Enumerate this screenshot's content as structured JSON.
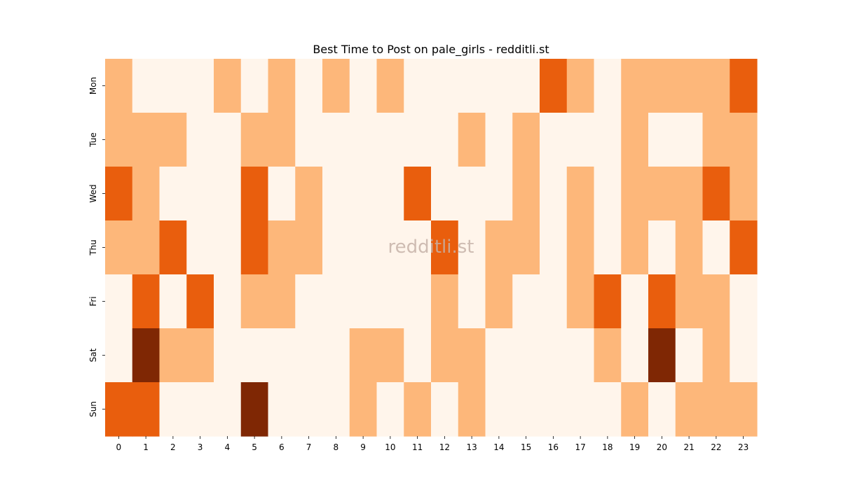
{
  "chart_data": {
    "type": "heatmap",
    "title": "Best Time to Post on pale_girls - redditli.st",
    "watermark": "redditli.st",
    "x_categories": [
      "0",
      "1",
      "2",
      "3",
      "4",
      "5",
      "6",
      "7",
      "8",
      "9",
      "10",
      "11",
      "12",
      "13",
      "14",
      "15",
      "16",
      "17",
      "18",
      "19",
      "20",
      "21",
      "22",
      "23"
    ],
    "y_categories": [
      "Mon",
      "Tue",
      "Wed",
      "Thu",
      "Fri",
      "Sat",
      "Sun"
    ],
    "xlabel": "",
    "ylabel": "",
    "colorbar": false,
    "colormap": "Oranges",
    "levels": 4,
    "level_colors": [
      "#fff5eb",
      "#fdb77a",
      "#e95e0d",
      "#7f2704"
    ],
    "values": [
      [
        1,
        0,
        0,
        0,
        1,
        0,
        1,
        0,
        1,
        0,
        1,
        0,
        0,
        0,
        0,
        0,
        2,
        1,
        0,
        1,
        1,
        1,
        1,
        2
      ],
      [
        1,
        1,
        1,
        0,
        0,
        1,
        1,
        0,
        0,
        0,
        0,
        0,
        0,
        1,
        0,
        1,
        0,
        0,
        0,
        1,
        0,
        0,
        1,
        1
      ],
      [
        2,
        1,
        0,
        0,
        0,
        2,
        0,
        1,
        0,
        0,
        0,
        2,
        0,
        0,
        0,
        1,
        0,
        1,
        0,
        1,
        1,
        1,
        2,
        1
      ],
      [
        1,
        1,
        2,
        0,
        0,
        2,
        1,
        1,
        0,
        0,
        0,
        0,
        2,
        0,
        1,
        1,
        0,
        1,
        0,
        1,
        0,
        1,
        0,
        2
      ],
      [
        0,
        2,
        0,
        2,
        0,
        1,
        1,
        0,
        0,
        0,
        0,
        0,
        1,
        0,
        1,
        0,
        0,
        1,
        2,
        0,
        2,
        1,
        1,
        0
      ],
      [
        0,
        3,
        1,
        1,
        0,
        0,
        0,
        0,
        0,
        1,
        1,
        0,
        1,
        1,
        0,
        0,
        0,
        0,
        1,
        0,
        3,
        0,
        1,
        0
      ],
      [
        2,
        2,
        0,
        0,
        0,
        3,
        0,
        0,
        0,
        1,
        0,
        1,
        0,
        1,
        0,
        0,
        0,
        0,
        0,
        1,
        0,
        1,
        1,
        1
      ]
    ]
  }
}
